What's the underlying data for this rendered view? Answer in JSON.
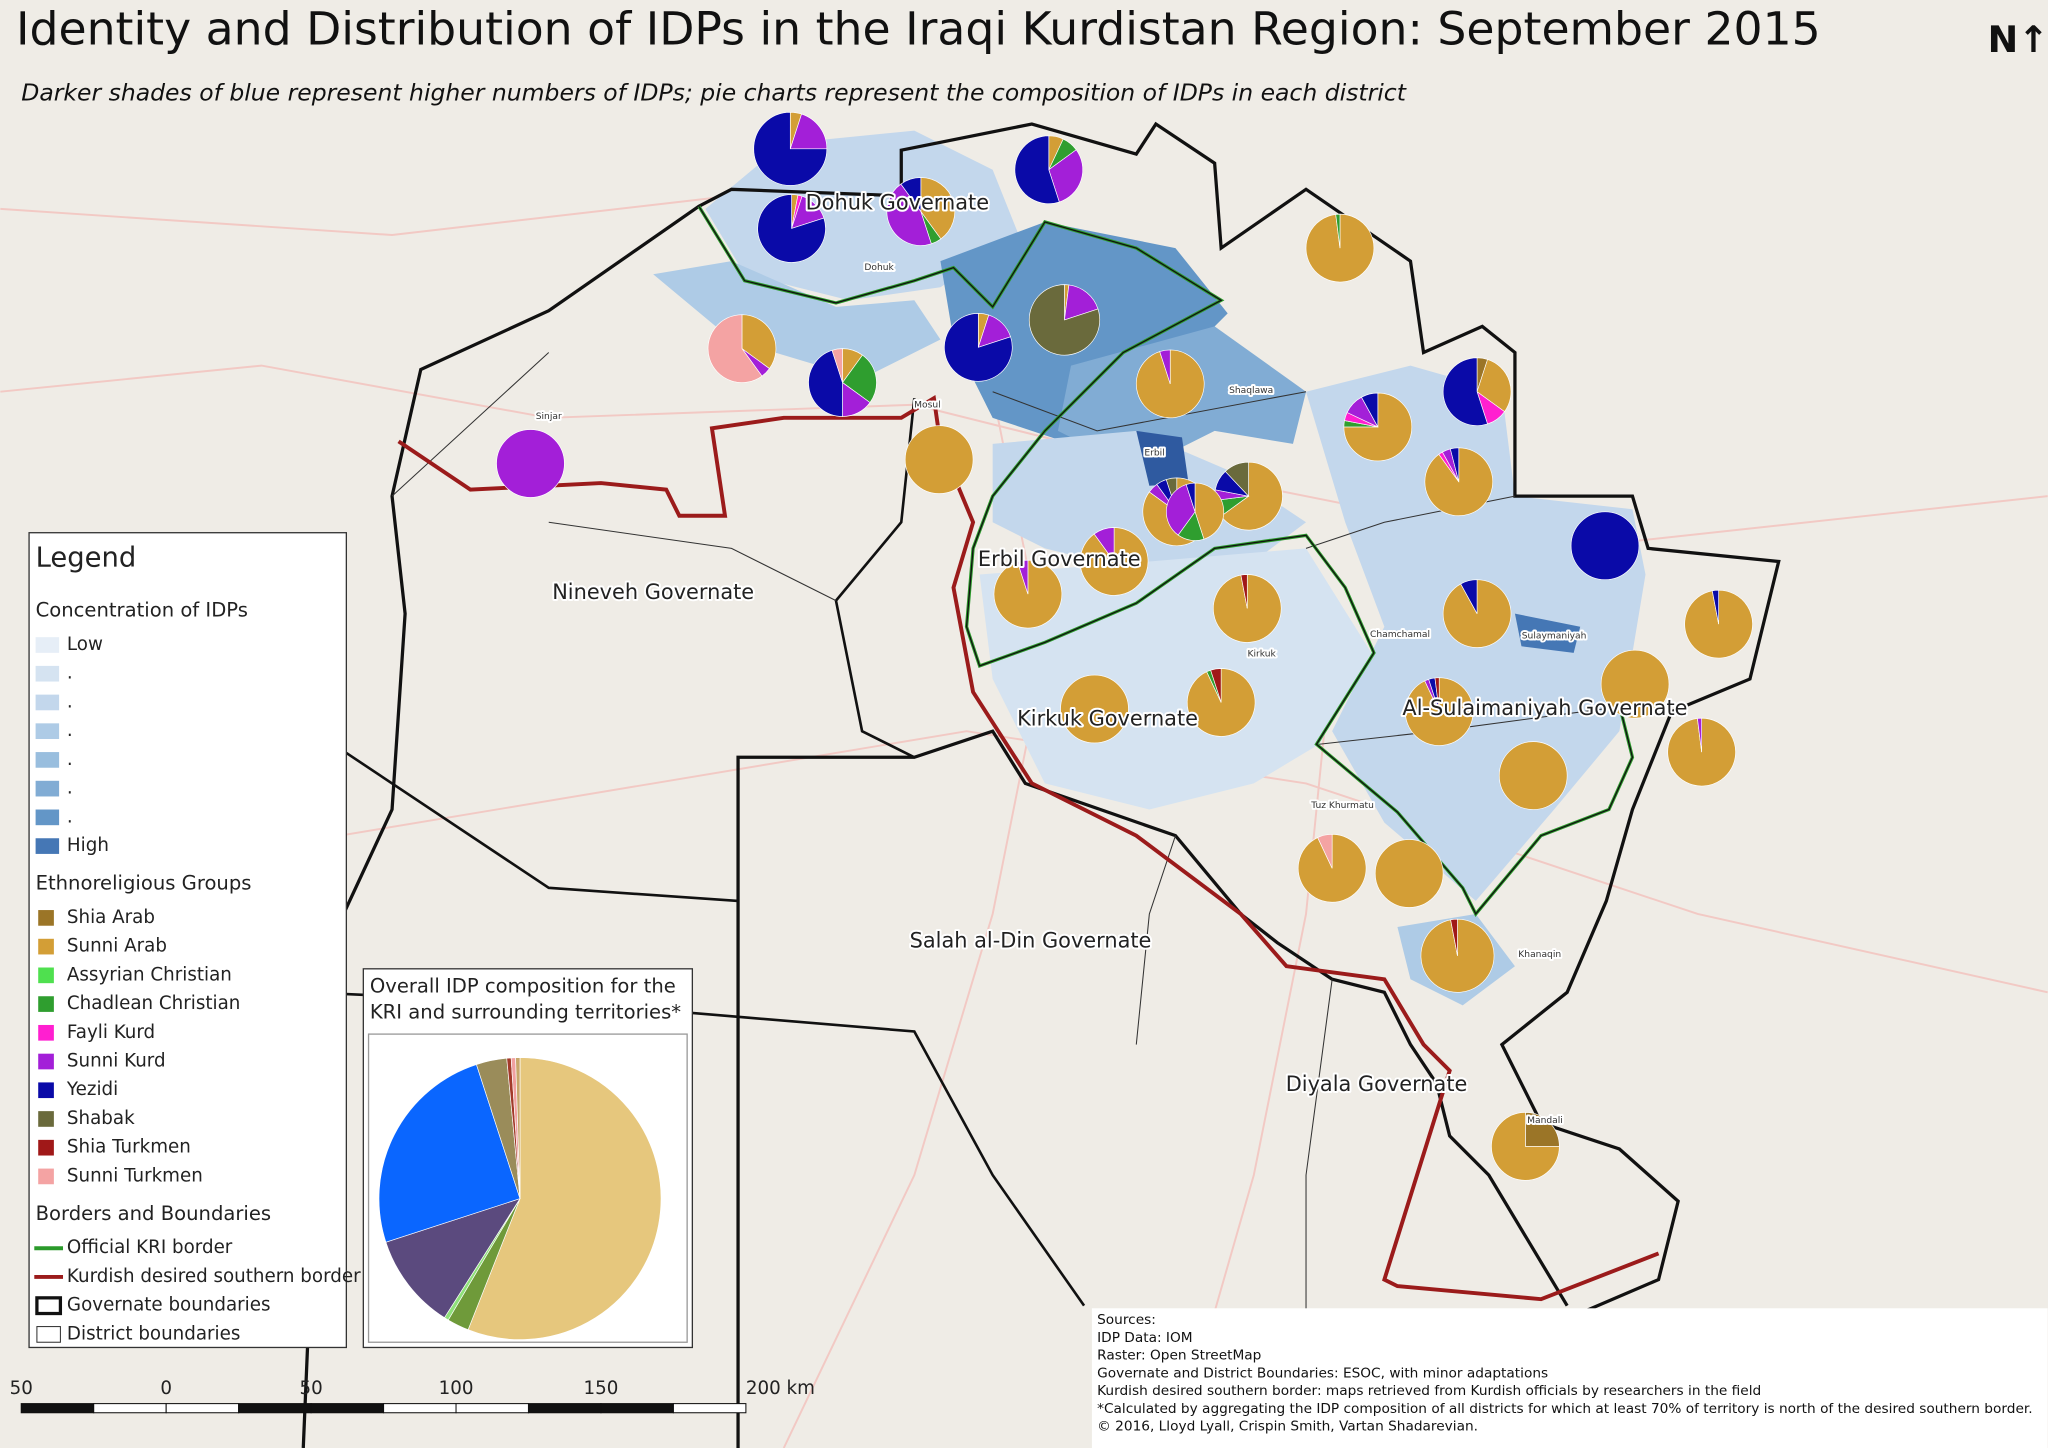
{
  "title": "Identity and Distribution of IDPs in the Iraqi Kurdistan Region: September 2015",
  "subtitle": "Darker shades of blue represent higher numbers of IDPs; pie charts represent the composition of IDPs in each district",
  "north_label": "N↑",
  "legend": {
    "title": "Legend",
    "concentration_title": "Concentration of IDPs",
    "concentration_levels": [
      "Low",
      ".",
      ".",
      ".",
      ".",
      ".",
      ".",
      "High"
    ],
    "concentration_colors": [
      "#e6eef7",
      "#d5e3f1",
      "#c3d7ec",
      "#aecbe6",
      "#99bede",
      "#81acd4",
      "#6396c7",
      "#4577b5"
    ],
    "groups_title": "Ethnoreligious Groups",
    "groups": [
      {
        "name": "Shia Arab",
        "color": "#9b7527"
      },
      {
        "name": "Sunni Arab",
        "color": "#d39e36"
      },
      {
        "name": "Assyrian Christian",
        "color": "#4fe04f"
      },
      {
        "name": "Chadlean Christian",
        "color": "#2f9e2f"
      },
      {
        "name": "Fayli Kurd",
        "color": "#ff1fd0"
      },
      {
        "name": "Sunni Kurd",
        "color": "#a31fd8"
      },
      {
        "name": "Yezidi",
        "color": "#0a0aa8"
      },
      {
        "name": "Shabak",
        "color": "#6a6a3c"
      },
      {
        "name": "Shia Turkmen",
        "color": "#a01818"
      },
      {
        "name": "Sunni Turkmen",
        "color": "#f4a3a3"
      }
    ],
    "borders_title": "Borders and Boundaries",
    "borders": [
      "Official KRI border",
      "Kurdish desired southern border",
      "Governate boundaries",
      "District boundaries"
    ]
  },
  "chart_data": {
    "type": "pie",
    "title": [
      "Overall IDP composition for the",
      "KRI and surrounding territories*"
    ],
    "categories": [
      "Sunni Arab",
      "Chadlean Christian",
      "Assyrian Christian",
      "Sunni Kurd",
      "Yezidi",
      "Shabak",
      "Shia Turkmen",
      "Sunni Turkmen",
      "Shia Arab"
    ],
    "values": [
      56,
      2.5,
      0.5,
      11,
      25,
      3.5,
      0.5,
      0.5,
      0.5
    ],
    "colors": [
      "#e6c77d",
      "#6f9a3a",
      "#8fe07a",
      "#5b4a7e",
      "#0a66ff",
      "#9a8c5a",
      "#a33a2a",
      "#f0a0a0",
      "#c8a66a"
    ]
  },
  "map": {
    "governates": [
      "Dohuk Governate",
      "Nineveh Governate",
      "Erbil Governate",
      "Kirkuk Governate",
      "Al-Sulaimaniyah Governate",
      "Salah al-Din Governate",
      "Diyala Governate"
    ],
    "places": [
      "Dohuk",
      "Sinjar",
      "Mosul",
      "Erbil",
      "Shaqlawa",
      "Kirkuk",
      "Chamchamal",
      "Sulaymaniyah",
      "Tuz Khurmatu",
      "Khanaqin",
      "Mandali"
    ],
    "district_pies": [
      [
        0,
        5,
        0,
        0,
        0,
        20,
        75,
        0,
        0,
        0
      ],
      [
        0,
        7,
        0,
        8,
        0,
        30,
        55,
        0,
        0,
        0
      ],
      [
        0,
        3,
        0,
        0,
        2,
        15,
        80,
        0,
        0,
        0
      ],
      [
        0,
        40,
        0,
        5,
        0,
        45,
        10,
        0,
        0,
        0
      ],
      [
        0,
        98,
        0,
        2,
        0,
        0,
        0,
        0,
        0,
        0
      ],
      [
        0,
        2,
        0,
        0,
        0,
        18,
        0,
        80,
        0,
        0
      ],
      [
        0,
        5,
        0,
        0,
        0,
        15,
        80,
        0,
        0,
        0
      ],
      [
        0,
        35,
        0,
        0,
        0,
        5,
        0,
        0,
        0,
        60
      ],
      [
        0,
        10,
        0,
        25,
        0,
        15,
        45,
        0,
        0,
        5
      ],
      [
        0,
        0,
        0,
        0,
        0,
        100,
        0,
        0,
        0,
        0
      ],
      [
        0,
        100,
        0,
        0,
        0,
        0,
        0,
        0,
        0,
        0
      ],
      [
        0,
        95,
        0,
        0,
        0,
        5,
        0,
        0,
        0,
        0
      ],
      [
        0,
        75,
        0,
        3,
        4,
        10,
        8,
        0,
        0,
        0
      ],
      [
        5,
        30,
        0,
        0,
        10,
        0,
        55,
        0,
        0,
        0
      ],
      [
        0,
        90,
        0,
        0,
        2,
        4,
        4,
        0,
        0,
        0
      ],
      [
        0,
        65,
        0,
        8,
        0,
        5,
        10,
        12,
        0,
        0
      ],
      [
        0,
        85,
        0,
        0,
        0,
        5,
        5,
        5,
        0,
        0
      ],
      [
        0,
        45,
        0,
        15,
        0,
        35,
        5,
        0,
        0,
        0
      ],
      [
        0,
        0,
        0,
        0,
        0,
        0,
        100,
        0,
        0,
        0
      ],
      [
        0,
        90,
        0,
        0,
        0,
        10,
        0,
        0,
        0,
        0
      ],
      [
        0,
        95,
        0,
        0,
        0,
        5,
        0,
        0,
        0,
        0
      ],
      [
        0,
        97,
        0,
        0,
        0,
        0,
        0,
        0,
        3,
        0
      ],
      [
        0,
        92,
        0,
        0,
        0,
        0,
        8,
        0,
        0,
        0
      ],
      [
        0,
        97,
        0,
        0,
        0,
        0,
        3,
        0,
        0,
        0
      ],
      [
        0,
        93,
        0,
        2,
        0,
        0,
        0,
        0,
        5,
        0
      ],
      [
        0,
        100,
        0,
        0,
        0,
        0,
        0,
        0,
        0,
        0
      ],
      [
        0,
        93,
        0,
        0,
        0,
        2,
        3,
        0,
        2,
        0
      ],
      [
        0,
        100,
        0,
        0,
        0,
        0,
        0,
        0,
        0,
        0
      ],
      [
        0,
        98,
        0,
        0,
        0,
        2,
        0,
        0,
        0,
        0
      ],
      [
        0,
        100,
        0,
        0,
        0,
        0,
        0,
        0,
        0,
        0
      ],
      [
        0,
        93,
        0,
        0,
        0,
        0,
        0,
        0,
        0,
        7
      ],
      [
        0,
        100,
        0,
        0,
        0,
        0,
        0,
        0,
        0,
        0
      ],
      [
        0,
        97,
        0,
        0,
        0,
        0,
        0,
        0,
        3,
        0
      ],
      [
        25,
        75,
        0,
        0,
        0,
        0,
        0,
        0,
        0,
        0
      ]
    ]
  },
  "scale_bar": {
    "ticks": [
      {
        "value": -50,
        "label": "50"
      },
      0,
      50,
      100,
      150,
      {
        "value": 200,
        "label": "200 km"
      }
    ]
  },
  "sources": [
    "Sources:",
    "IDP Data: IOM",
    "Raster: Open StreetMap",
    "Governate and District Boundaries: ESOC, with minor adaptations",
    "Kurdish desired southern border: maps retrieved from Kurdish officials by researchers in the field",
    "*Calculated by aggregating the IDP composition of all districts for which at least 70% of territory is north of the desired southern border.",
    "© 2016, Lloyd Lyall, Crispin Smith, Vartan Shadarevian."
  ]
}
